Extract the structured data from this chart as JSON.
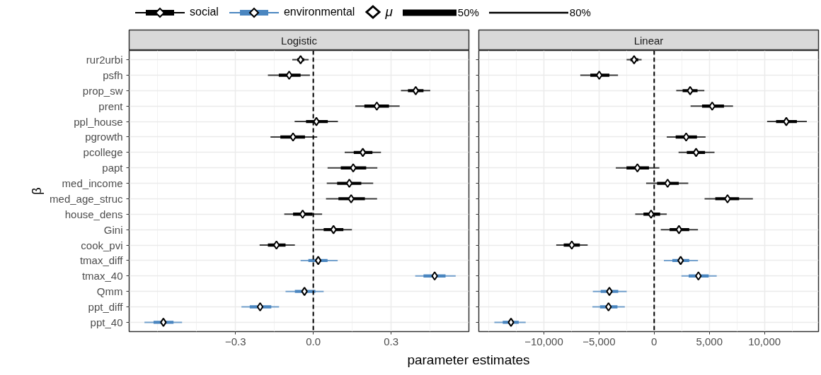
{
  "chart_data": [
    {
      "type": "box",
      "orientation": "horizontal",
      "title": "Logistic",
      "xlabel": "parameter estimates",
      "ylabel": "β",
      "legend": "top",
      "grid": true,
      "annotations": [
        "μ",
        "50%",
        "80%"
      ],
      "categories": [
        "rur2urbi",
        "psfh",
        "prop_sw",
        "prent",
        "ppl_house",
        "pgrowth",
        "pcollege",
        "papt",
        "med_income",
        "med_age_struc",
        "house_dens",
        "Gini",
        "cook_pvi",
        "tmax_diff",
        "tmax_40",
        "Qmm",
        "ppt_diff",
        "ppt_40"
      ],
      "xlim": [
        -0.71,
        0.6
      ],
      "xticks": [
        {
          "value": -0.3,
          "label": "−0.3"
        },
        {
          "value": 0,
          "label": "0.0"
        },
        {
          "value": 0.3,
          "label": "0.3"
        }
      ],
      "ref_lines": [
        {
          "axis": "x",
          "value": 0,
          "color": "#000000",
          "line_style": "dashed"
        }
      ],
      "series": [
        {
          "name": "social",
          "color": "#000000",
          "boxes": [
            {
              "low": -0.081,
              "q1": -0.062,
              "median": -0.049,
              "q3": -0.035,
              "high": -0.018
            },
            {
              "low": -0.175,
              "q1": -0.133,
              "median": -0.093,
              "q3": -0.049,
              "high": -0.013
            },
            {
              "low": 0.338,
              "q1": 0.365,
              "median": 0.395,
              "q3": 0.425,
              "high": 0.451
            },
            {
              "low": 0.162,
              "q1": 0.197,
              "median": 0.245,
              "q3": 0.292,
              "high": 0.333
            },
            {
              "low": -0.072,
              "q1": -0.028,
              "median": 0.012,
              "q3": 0.056,
              "high": 0.095
            },
            {
              "low": -0.165,
              "q1": -0.127,
              "median": -0.078,
              "q3": -0.032,
              "high": 0.015
            },
            {
              "low": 0.121,
              "q1": 0.156,
              "median": 0.191,
              "q3": 0.228,
              "high": 0.261
            },
            {
              "low": 0.055,
              "q1": 0.106,
              "median": 0.154,
              "q3": 0.204,
              "high": 0.247
            },
            {
              "low": 0.052,
              "q1": 0.092,
              "median": 0.139,
              "q3": 0.185,
              "high": 0.231
            },
            {
              "low": 0.049,
              "q1": 0.097,
              "median": 0.146,
              "q3": 0.199,
              "high": 0.246
            },
            {
              "low": -0.112,
              "q1": -0.078,
              "median": -0.041,
              "q3": -0.003,
              "high": 0.034
            },
            {
              "low": 0.006,
              "q1": 0.04,
              "median": 0.078,
              "q3": 0.116,
              "high": 0.149
            },
            {
              "low": -0.207,
              "q1": -0.175,
              "median": -0.142,
              "q3": -0.107,
              "high": -0.071
            },
            null,
            null,
            null,
            null,
            null
          ]
        },
        {
          "name": "environmental",
          "color": "#4a86c0",
          "boxes": [
            null,
            null,
            null,
            null,
            null,
            null,
            null,
            null,
            null,
            null,
            null,
            null,
            null,
            {
              "low": -0.049,
              "q1": -0.019,
              "median": 0.019,
              "q3": 0.055,
              "high": 0.094
            },
            {
              "low": 0.393,
              "q1": 0.425,
              "median": 0.468,
              "q3": 0.51,
              "high": 0.549
            },
            {
              "low": -0.107,
              "q1": -0.071,
              "median": -0.034,
              "q3": 0.008,
              "high": 0.04
            },
            {
              "low": -0.277,
              "q1": -0.245,
              "median": -0.205,
              "q3": -0.162,
              "high": -0.132
            },
            {
              "low": -0.651,
              "q1": -0.616,
              "median": -0.578,
              "q3": -0.539,
              "high": -0.506
            }
          ]
        }
      ]
    },
    {
      "type": "box",
      "orientation": "horizontal",
      "title": "Linear",
      "grid": true,
      "tick_labels": "x",
      "categories": [
        null,
        null,
        null,
        null,
        null,
        null,
        null,
        null,
        null,
        null,
        null,
        null,
        null,
        null,
        null,
        null,
        null,
        null
      ],
      "xlim": [
        -15900,
        14900
      ],
      "xticks": [
        {
          "value": -10000,
          "label": "−10,000"
        },
        {
          "value": -5000,
          "label": "−5,000"
        },
        {
          "value": 0,
          "label": "0"
        },
        {
          "value": 5000,
          "label": "5,000"
        },
        {
          "value": 10000,
          "label": "10,000"
        }
      ],
      "ref_lines": [
        {
          "axis": "x",
          "value": 0,
          "color": "#000000",
          "line_style": "dashed"
        }
      ],
      "series": [
        {
          "color": "#000000",
          "boxes": [
            {
              "low": -2500,
              "q1": -2150,
              "median": -1820,
              "q3": -1440,
              "high": -1140
            },
            {
              "low": -6700,
              "q1": -5790,
              "median": -4980,
              "q3": -4060,
              "high": -3280
            },
            {
              "low": 2000,
              "q1": 2580,
              "median": 3260,
              "q3": 3930,
              "high": 4550
            },
            {
              "low": 3300,
              "q1": 4340,
              "median": 5260,
              "q3": 6330,
              "high": 7150
            },
            {
              "low": 10240,
              "q1": 11050,
              "median": 11980,
              "q3": 12940,
              "high": 13840
            },
            {
              "low": 1140,
              "q1": 1950,
              "median": 2900,
              "q3": 3880,
              "high": 4660
            },
            {
              "low": 2210,
              "q1": 2960,
              "median": 3800,
              "q3": 4610,
              "high": 5470
            },
            {
              "low": -3480,
              "q1": -2510,
              "median": -1520,
              "q3": -470,
              "high": 470
            },
            {
              "low": -730,
              "q1": 260,
              "median": 1220,
              "q3": 2230,
              "high": 3090
            },
            {
              "low": 4570,
              "q1": 5540,
              "median": 6650,
              "q3": 7700,
              "high": 8950
            },
            {
              "low": -1720,
              "q1": -970,
              "median": -280,
              "q3": 540,
              "high": 1140
            },
            {
              "low": 600,
              "q1": 1400,
              "median": 2250,
              "q3": 3180,
              "high": 3970
            },
            {
              "low": -8880,
              "q1": -8200,
              "median": -7470,
              "q3": -6740,
              "high": -6030
            },
            null,
            null,
            null,
            null,
            null
          ]
        },
        {
          "color": "#4a86c0",
          "boxes": [
            null,
            null,
            null,
            null,
            null,
            null,
            null,
            null,
            null,
            null,
            null,
            null,
            null,
            {
              "low": 880,
              "q1": 1650,
              "median": 2400,
              "q3": 3180,
              "high": 3970
            },
            {
              "low": 2470,
              "q1": 3130,
              "median": 4010,
              "q3": 4940,
              "high": 5670
            },
            {
              "low": -5560,
              "q1": -4850,
              "median": -4060,
              "q3": -3260,
              "high": -2490
            },
            {
              "low": -5600,
              "q1": -4910,
              "median": -4140,
              "q3": -3330,
              "high": -2660
            },
            {
              "low": -14490,
              "q1": -13730,
              "median": -12980,
              "q3": -12280,
              "high": -11650
            }
          ]
        }
      ]
    }
  ]
}
